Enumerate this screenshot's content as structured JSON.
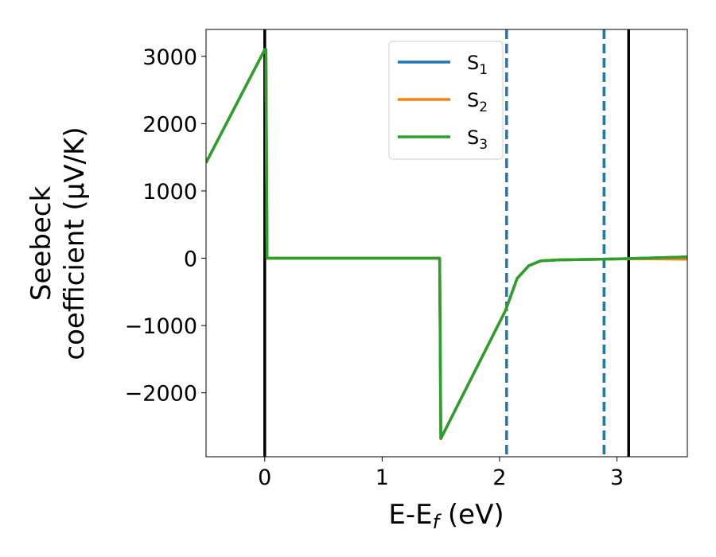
{
  "chart_data": {
    "type": "line",
    "xlabel": "E-E",
    "xlabel_sub": "f",
    "xlabel_unit": " (eV)",
    "ylabel_line1": "Seebeck",
    "ylabel_line2": "coefficient  (μV/K)",
    "xlim": [
      -0.5,
      3.6
    ],
    "ylim": [
      -2950,
      3400
    ],
    "x_ticks": [
      0,
      1,
      2,
      3
    ],
    "x_tick_labels": [
      "0",
      "1",
      "2",
      "3"
    ],
    "y_ticks": [
      3000,
      2000,
      1000,
      0,
      -1000,
      -2000
    ],
    "y_tick_labels": [
      "3000",
      "2000",
      "1000",
      "0",
      "−1000",
      "−2000"
    ],
    "grid": false,
    "legend_position": "top-center",
    "series": [
      {
        "name": "S",
        "sub": "1",
        "color": "#1f77b4",
        "x": [
          -0.5,
          0.0,
          0.01,
          0.02,
          1.49,
          1.5,
          2.05,
          2.15,
          2.25,
          2.35,
          2.5,
          3.0,
          3.6
        ],
        "y": [
          1420,
          3100,
          3100,
          0,
          0,
          -2680,
          -780,
          -300,
          -110,
          -40,
          -25,
          -10,
          20
        ]
      },
      {
        "name": "S",
        "sub": "2",
        "color": "#ff7f0e",
        "x": [
          -0.5,
          0.0,
          0.01,
          0.02,
          1.49,
          1.5,
          2.05,
          2.15,
          2.25,
          2.35,
          2.5,
          3.0,
          3.3,
          3.6
        ],
        "y": [
          1420,
          3100,
          3100,
          0,
          0,
          -2680,
          -780,
          -300,
          -110,
          -40,
          -25,
          -10,
          -8,
          -15
        ]
      },
      {
        "name": "S",
        "sub": "3",
        "color": "#2ca02c",
        "x": [
          -0.5,
          0.0,
          0.01,
          0.02,
          1.49,
          1.5,
          2.05,
          2.15,
          2.25,
          2.35,
          2.5,
          3.0,
          3.6
        ],
        "y": [
          1420,
          3100,
          3100,
          0,
          0,
          -2680,
          -780,
          -300,
          -110,
          -40,
          -25,
          -10,
          20
        ]
      }
    ],
    "vertical_lines": [
      {
        "x": 0.0,
        "style": "solid",
        "color": "#000000"
      },
      {
        "x": 3.1,
        "style": "solid",
        "color": "#000000"
      },
      {
        "x": 2.06,
        "style": "dashed",
        "color": "#1f77b4"
      },
      {
        "x": 2.89,
        "style": "dashed",
        "color": "#1f77b4"
      }
    ]
  }
}
